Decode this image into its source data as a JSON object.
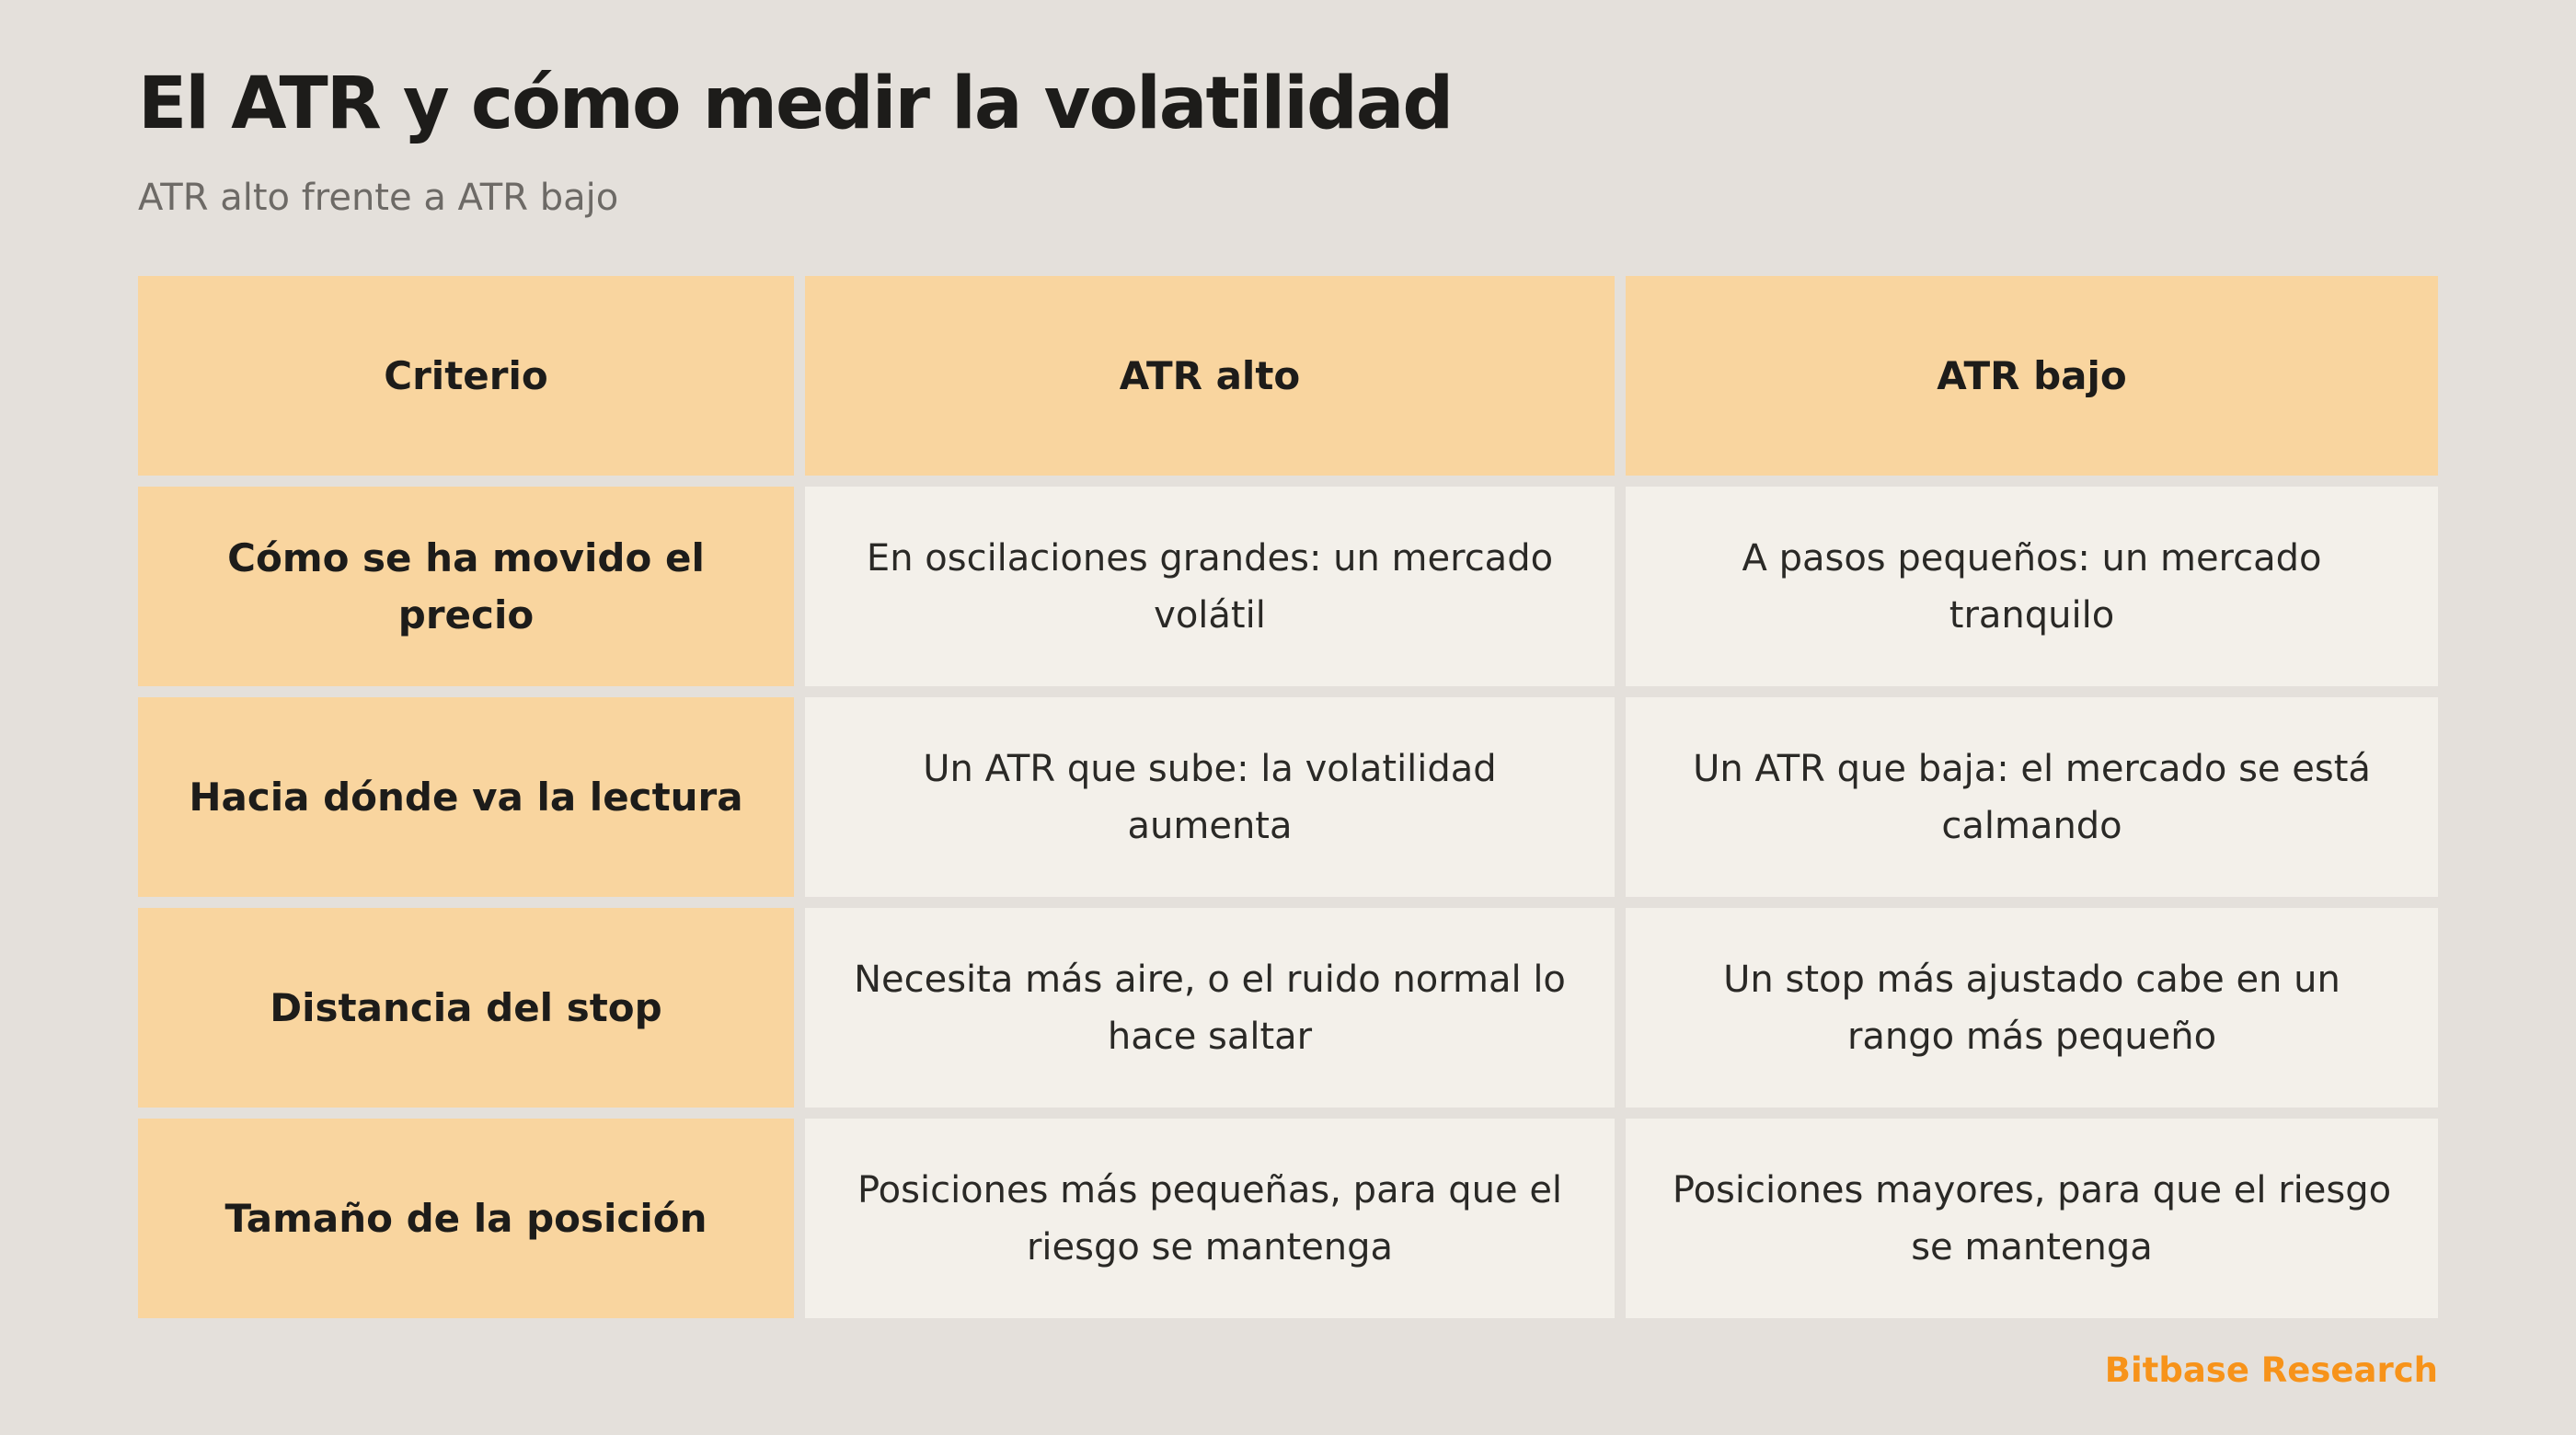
{
  "title": "El ATR y cómo medir la volatilidad",
  "subtitle": "ATR alto frente a ATR bajo",
  "table": {
    "headers": [
      "Criterio",
      "ATR alto",
      "ATR bajo"
    ],
    "rows": [
      [
        "Cómo se ha movido el precio",
        "En oscilaciones grandes: un mercado volátil",
        "A pasos pequeños: un mercado tranquilo"
      ],
      [
        "Hacia dónde va la lectura",
        "Un ATR que sube: la volatilidad aumenta",
        "Un ATR que baja: el mercado se está calmando"
      ],
      [
        "Distancia del stop",
        "Necesita más aire, o el ruido normal lo hace saltar",
        "Un stop más ajustado cabe en un rango más pequeño"
      ],
      [
        "Tamaño de la posición",
        "Posiciones más pequeñas, para que el riesgo se mantenga",
        "Posiciones mayores, para que el riesgo se mantenga"
      ]
    ]
  },
  "brand": "Bitbase Research",
  "colors": {
    "background": "#e4e0db",
    "header_fill": "#f9d59f",
    "cell_fill": "#f3f0ea",
    "brand": "#f7931a"
  }
}
